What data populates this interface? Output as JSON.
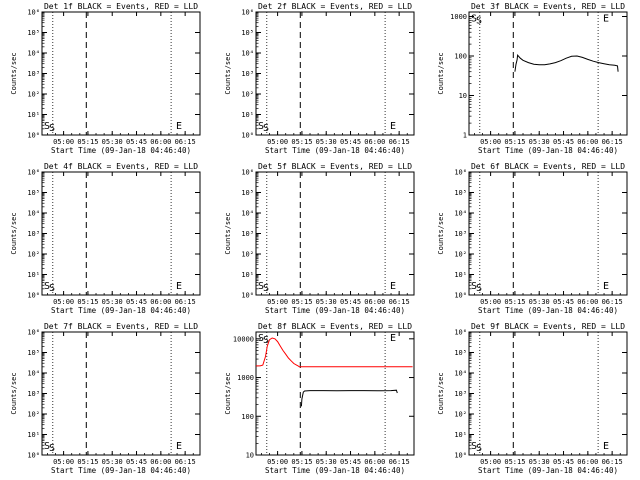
{
  "figure": {
    "xaxis": {
      "label": "Start Time (09-Jan-18 04:46:40)",
      "min": 0,
      "max": 5850,
      "ticks": [
        {
          "v": 800,
          "label": "05:00"
        },
        {
          "v": 1700,
          "label": "05:15"
        },
        {
          "v": 2600,
          "label": "05:30"
        },
        {
          "v": 3500,
          "label": "05:45"
        },
        {
          "v": 4400,
          "label": "06:00"
        },
        {
          "v": 5300,
          "label": "06:15"
        }
      ],
      "dotted_lines": [
        400,
        4780
      ],
      "dashed_line": 1640
    },
    "ylabel": "Counts/sec",
    "markers": {
      "s": "S",
      "e": "E"
    }
  },
  "chart_data": [
    {
      "type": "line",
      "title": "Det 1f BLACK = Events, RED = LLD",
      "yscale": "log",
      "ylim": [
        1,
        1000000
      ],
      "yticks": [
        {
          "v": 1,
          "label": "10⁰"
        },
        {
          "v": 10,
          "label": "10¹"
        },
        {
          "v": 100,
          "label": "10²"
        },
        {
          "v": 1000,
          "label": "10³"
        },
        {
          "v": 10000,
          "label": "10⁴"
        },
        {
          "v": 100000,
          "label": "10⁵"
        },
        {
          "v": 1000000,
          "label": "10⁶"
        }
      ],
      "markers": {
        "s_x": 150,
        "s_y": 3,
        "e_x": 4960,
        "e_y": 3
      },
      "series": []
    },
    {
      "type": "line",
      "title": "Det 2f BLACK = Events, RED = LLD",
      "yscale": "log",
      "ylim": [
        1,
        1000000
      ],
      "yticks": [
        {
          "v": 1,
          "label": "10⁰"
        },
        {
          "v": 10,
          "label": "10¹"
        },
        {
          "v": 100,
          "label": "10²"
        },
        {
          "v": 1000,
          "label": "10³"
        },
        {
          "v": 10000,
          "label": "10⁴"
        },
        {
          "v": 100000,
          "label": "10⁵"
        },
        {
          "v": 1000000,
          "label": "10⁶"
        }
      ],
      "markers": {
        "s_x": 150,
        "s_y": 3,
        "e_x": 4960,
        "e_y": 3
      },
      "series": []
    },
    {
      "type": "line",
      "title": "Det 3f BLACK = Events, RED = LLD",
      "yscale": "log",
      "ylim": [
        1,
        1300
      ],
      "yticks": [
        {
          "v": 1,
          "label": "1"
        },
        {
          "v": 10,
          "label": "10"
        },
        {
          "v": 100,
          "label": "100"
        },
        {
          "v": 1000,
          "label": "1000"
        }
      ],
      "markers": {
        "s_x": 150,
        "s_y": 950,
        "e_x": 4960,
        "e_y": 950
      },
      "series": [
        {
          "color": "#000000",
          "x": [
            1700,
            1740,
            1780,
            1800,
            1900,
            2000,
            2200,
            2400,
            2600,
            2800,
            3000,
            3200,
            3400,
            3600,
            3800,
            4000,
            4200,
            4400,
            4600,
            4800,
            5000,
            5200,
            5400,
            5500,
            5520
          ],
          "y": [
            40,
            62,
            80,
            105,
            88,
            78,
            68,
            62,
            60,
            60,
            63,
            68,
            76,
            88,
            98,
            100,
            92,
            82,
            74,
            68,
            64,
            60,
            58,
            56,
            40
          ]
        }
      ]
    },
    {
      "type": "line",
      "title": "Det 4f BLACK = Events, RED = LLD",
      "yscale": "log",
      "ylim": [
        1,
        1000000
      ],
      "yticks": [
        {
          "v": 1,
          "label": "10⁰"
        },
        {
          "v": 10,
          "label": "10¹"
        },
        {
          "v": 100,
          "label": "10²"
        },
        {
          "v": 1000,
          "label": "10³"
        },
        {
          "v": 10000,
          "label": "10⁴"
        },
        {
          "v": 100000,
          "label": "10⁵"
        },
        {
          "v": 1000000,
          "label": "10⁶"
        }
      ],
      "markers": {
        "s_x": 150,
        "s_y": 3,
        "e_x": 4960,
        "e_y": 3
      },
      "series": []
    },
    {
      "type": "line",
      "title": "Det 5f BLACK = Events, RED = LLD",
      "yscale": "log",
      "ylim": [
        1,
        1000000
      ],
      "yticks": [
        {
          "v": 1,
          "label": "10⁰"
        },
        {
          "v": 10,
          "label": "10¹"
        },
        {
          "v": 100,
          "label": "10²"
        },
        {
          "v": 1000,
          "label": "10³"
        },
        {
          "v": 10000,
          "label": "10⁴"
        },
        {
          "v": 100000,
          "label": "10⁵"
        },
        {
          "v": 1000000,
          "label": "10⁶"
        }
      ],
      "markers": {
        "s_x": 150,
        "s_y": 3,
        "e_x": 4960,
        "e_y": 3
      },
      "series": []
    },
    {
      "type": "line",
      "title": "Det 6f BLACK = Events, RED = LLD",
      "yscale": "log",
      "ylim": [
        1,
        1000000
      ],
      "yticks": [
        {
          "v": 1,
          "label": "10⁰"
        },
        {
          "v": 10,
          "label": "10¹"
        },
        {
          "v": 100,
          "label": "10²"
        },
        {
          "v": 1000,
          "label": "10³"
        },
        {
          "v": 10000,
          "label": "10⁴"
        },
        {
          "v": 100000,
          "label": "10⁵"
        },
        {
          "v": 1000000,
          "label": "10⁶"
        }
      ],
      "markers": {
        "s_x": 150,
        "s_y": 3,
        "e_x": 4960,
        "e_y": 3
      },
      "series": []
    },
    {
      "type": "line",
      "title": "Det 7f BLACK = Events, RED = LLD",
      "yscale": "log",
      "ylim": [
        1,
        1000000
      ],
      "yticks": [
        {
          "v": 1,
          "label": "10⁰"
        },
        {
          "v": 10,
          "label": "10¹"
        },
        {
          "v": 100,
          "label": "10²"
        },
        {
          "v": 1000,
          "label": "10³"
        },
        {
          "v": 10000,
          "label": "10⁴"
        },
        {
          "v": 100000,
          "label": "10⁵"
        },
        {
          "v": 1000000,
          "label": "10⁶"
        }
      ],
      "markers": {
        "s_x": 150,
        "s_y": 3,
        "e_x": 4960,
        "e_y": 3
      },
      "series": []
    },
    {
      "type": "line",
      "title": "Det 8f BLACK = Events, RED = LLD",
      "yscale": "log",
      "ylim": [
        10,
        15000
      ],
      "yticks": [
        {
          "v": 10,
          "label": "10"
        },
        {
          "v": 100,
          "label": "100"
        },
        {
          "v": 1000,
          "label": "1000"
        },
        {
          "v": 10000,
          "label": "10000"
        }
      ],
      "markers": {
        "s_x": 150,
        "s_y": 11000,
        "e_x": 4960,
        "e_y": 11000
      },
      "series": [
        {
          "color": "#ff0000",
          "x": [
            0,
            150,
            250,
            350,
            420,
            500,
            600,
            700,
            800,
            900,
            1000,
            1100,
            1200,
            1300,
            1400,
            1500,
            1560,
            1600,
            1700,
            2000,
            3000,
            4000,
            5000,
            5800
          ],
          "y": [
            2000,
            2000,
            2100,
            3500,
            6500,
            9500,
            10500,
            10000,
            8500,
            6500,
            5000,
            4000,
            3200,
            2700,
            2300,
            2100,
            2000,
            1900,
            1900,
            1900,
            1900,
            1900,
            1900,
            1900
          ]
        },
        {
          "color": "#000000",
          "x": [
            1680,
            1700,
            1750,
            1800,
            2000,
            2500,
            3000,
            3500,
            4000,
            4500,
            5000,
            5200,
            5230
          ],
          "y": [
            180,
            280,
            420,
            450,
            460,
            460,
            455,
            460,
            460,
            455,
            460,
            470,
            400
          ]
        }
      ]
    },
    {
      "type": "line",
      "title": "Det 9f BLACK = Events, RED = LLD",
      "yscale": "log",
      "ylim": [
        1,
        1000000
      ],
      "yticks": [
        {
          "v": 1,
          "label": "10⁰"
        },
        {
          "v": 10,
          "label": "10¹"
        },
        {
          "v": 100,
          "label": "10²"
        },
        {
          "v": 1000,
          "label": "10³"
        },
        {
          "v": 10000,
          "label": "10⁴"
        },
        {
          "v": 100000,
          "label": "10⁵"
        },
        {
          "v": 1000000,
          "label": "10⁶"
        }
      ],
      "markers": {
        "s_x": 150,
        "s_y": 3,
        "e_x": 4960,
        "e_y": 3
      },
      "series": []
    }
  ]
}
